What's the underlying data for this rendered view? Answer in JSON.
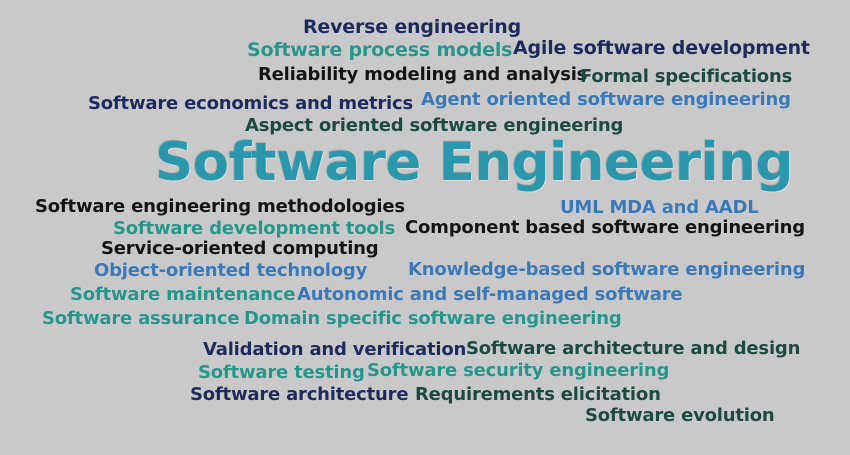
{
  "title": "Software Engineering",
  "terms": [
    "Reverse engineering",
    "Software process models",
    "Agile software development",
    "Reliability modeling and analysis",
    "Formal specifications",
    "Software economics and metrics",
    "Agent oriented software engineering",
    "Aspect oriented software engineering",
    "Software engineering methodologies",
    "UML MDA and AADL",
    "Software development tools",
    "Component based software engineering",
    "Service-oriented computing",
    "Object-oriented technology",
    "Knowledge-based software engineering",
    "Software maintenance",
    "Autonomic and self-managed software",
    "Software assurance",
    "Domain specific software engineering",
    "Validation and verification",
    "Software architecture and design",
    "Software testing",
    "Software security engineering",
    "Software architecture",
    "Requirements elicitation",
    "Software evolution"
  ],
  "colors": {
    "background": "#c9c9c9",
    "navy": "#1f2a5c",
    "black": "#141414",
    "teal": "#26968a",
    "blue": "#3b78b8",
    "dark_teal": "#1d4a40",
    "title": "#2a97ad"
  }
}
